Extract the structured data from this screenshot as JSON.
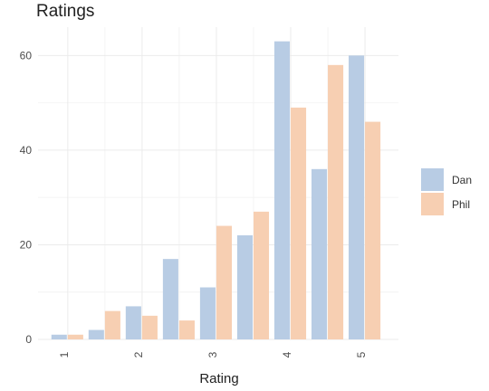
{
  "chart_data": {
    "type": "bar",
    "title": "Ratings",
    "xlabel": "Rating",
    "ylabel": "",
    "x_ticks": [
      "1",
      "2",
      "3",
      "4",
      "5"
    ],
    "y_ticks": [
      0,
      20,
      40,
      60
    ],
    "ylim": [
      0,
      66
    ],
    "xlim": [
      0.6,
      5.45
    ],
    "grid": true,
    "legend_position": "right",
    "series": [
      {
        "name": "Dan",
        "color": "#b8cce4",
        "x": [
          1.0,
          1.5,
          2.0,
          2.5,
          3.0,
          3.5,
          4.0,
          4.5,
          5.0
        ],
        "values": [
          1,
          2,
          7,
          17,
          11,
          22,
          63,
          36,
          60
        ]
      },
      {
        "name": "Phil",
        "color": "#f7cfb2",
        "x": [
          1.0,
          1.5,
          2.0,
          2.5,
          3.0,
          3.5,
          4.0,
          4.5,
          5.0
        ],
        "values": [
          1,
          6,
          5,
          4,
          24,
          27,
          49,
          58,
          46
        ]
      }
    ]
  }
}
